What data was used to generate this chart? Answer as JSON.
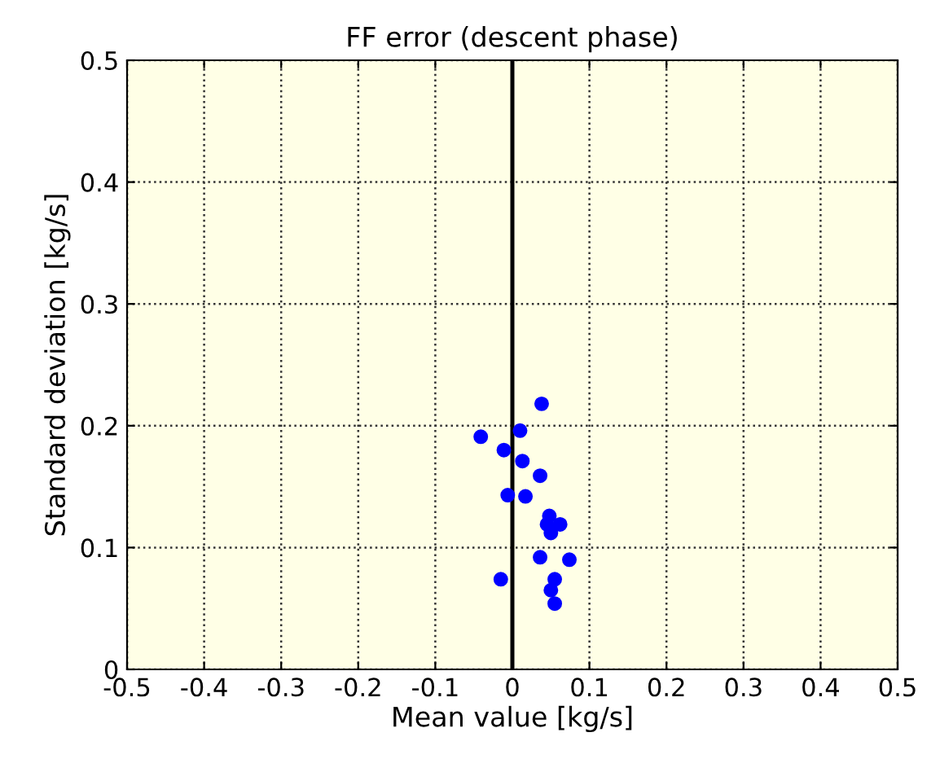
{
  "chart_data": {
    "type": "scatter",
    "title": "FF error (descent phase)",
    "xlabel": "Mean value [kg/s]",
    "ylabel": "Standard deviation [kg/s]",
    "x": [
      0.038,
      0.01,
      -0.041,
      -0.011,
      0.013,
      0.036,
      -0.006,
      0.017,
      0.048,
      0.062,
      0.045,
      0.05,
      0.036,
      0.074,
      -0.015,
      0.055,
      0.05,
      0.055
    ],
    "series": [
      {
        "color": "#0000ff",
        "values": [
          0.218,
          0.196,
          0.191,
          0.18,
          0.171,
          0.159,
          0.143,
          0.142,
          0.126,
          0.119,
          0.119,
          0.112,
          0.092,
          0.09,
          0.074,
          0.074,
          0.065,
          0.054
        ]
      }
    ],
    "xlim": [
      -0.5,
      0.5
    ],
    "ylim": [
      0,
      0.5
    ],
    "xticks": [
      -0.5,
      -0.4,
      -0.3,
      -0.2,
      -0.1,
      0,
      0.1,
      0.2,
      0.3,
      0.4,
      0.5
    ],
    "yticks": [
      0,
      0.1,
      0.2,
      0.3,
      0.4,
      0.5
    ],
    "ref_lines": [
      {
        "axis": "x",
        "value": 0,
        "color": "#000000",
        "line_style": "solid"
      }
    ],
    "grid": true,
    "marker": "circle"
  }
}
